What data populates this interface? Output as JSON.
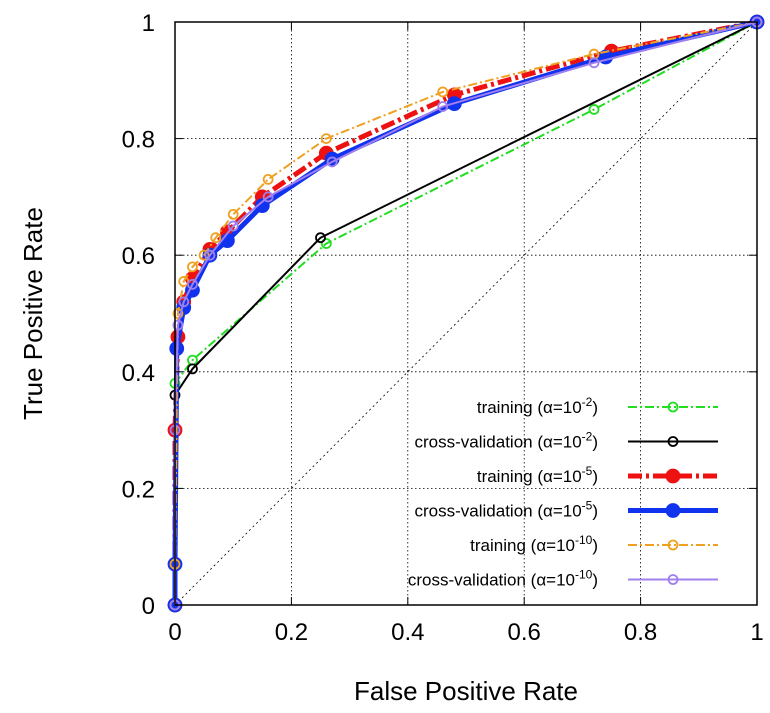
{
  "chart_data": {
    "type": "line",
    "xlabel": "False Positive Rate",
    "ylabel": "True Positive Rate",
    "xlim": [
      0,
      1
    ],
    "ylim": [
      0,
      1
    ],
    "x_ticks": [
      "0",
      "0.2",
      "0.4",
      "0.6",
      "0.8",
      "1"
    ],
    "y_ticks": [
      "0",
      "0.2",
      "0.4",
      "0.6",
      "0.8",
      "1"
    ],
    "grid": true,
    "legend_position": "bottom-right",
    "diagonal_reference": true,
    "series": [
      {
        "name": "training (α=10⁻²)",
        "name_base": "training (α=10",
        "name_exp": "-2",
        "color": "#22dd22",
        "dash": "dash-dot",
        "weight": "thin",
        "marker": "open-circle",
        "points": [
          [
            0,
            0
          ],
          [
            0,
            0.38
          ],
          [
            0.03,
            0.42
          ],
          [
            0.26,
            0.62
          ],
          [
            0.72,
            0.85
          ],
          [
            1,
            1
          ]
        ]
      },
      {
        "name": "cross-validation (α=10⁻²)",
        "name_base": "cross-validation (α=10",
        "name_exp": "-2",
        "color": "#000000",
        "dash": "solid",
        "weight": "thin",
        "marker": "open-circle",
        "points": [
          [
            0,
            0
          ],
          [
            0,
            0.36
          ],
          [
            0.03,
            0.405
          ],
          [
            0.25,
            0.63
          ],
          [
            1,
            1
          ]
        ]
      },
      {
        "name": "training (α=10⁻⁵)",
        "name_base": "training (α=10",
        "name_exp": "-5",
        "color": "#ee1111",
        "dash": "dash-dot",
        "weight": "thick",
        "marker": "filled-circle",
        "points": [
          [
            0,
            0
          ],
          [
            0,
            0.3
          ],
          [
            0.005,
            0.46
          ],
          [
            0.015,
            0.52
          ],
          [
            0.03,
            0.56
          ],
          [
            0.06,
            0.61
          ],
          [
            0.09,
            0.64
          ],
          [
            0.15,
            0.7
          ],
          [
            0.26,
            0.775
          ],
          [
            0.48,
            0.875
          ],
          [
            0.75,
            0.95
          ],
          [
            1,
            1
          ]
        ]
      },
      {
        "name": "cross-validation (α=10⁻⁵)",
        "name_base": "cross-validation (α=10",
        "name_exp": "-5",
        "color": "#1133ee",
        "dash": "solid",
        "weight": "thick",
        "marker": "filled-circle",
        "points": [
          [
            0,
            0
          ],
          [
            0,
            0.07
          ],
          [
            0.003,
            0.44
          ],
          [
            0.015,
            0.51
          ],
          [
            0.03,
            0.54
          ],
          [
            0.06,
            0.6
          ],
          [
            0.09,
            0.625
          ],
          [
            0.15,
            0.685
          ],
          [
            0.27,
            0.765
          ],
          [
            0.48,
            0.86
          ],
          [
            0.74,
            0.94
          ],
          [
            1,
            1
          ]
        ]
      },
      {
        "name": "training (α=10⁻¹⁰)",
        "name_base": "training (α=10",
        "name_exp": "-10",
        "color": "#f0a020",
        "dash": "dash-dot",
        "weight": "thin",
        "marker": "open-circle",
        "points": [
          [
            0,
            0
          ],
          [
            0,
            0.07
          ],
          [
            0.005,
            0.5
          ],
          [
            0.015,
            0.555
          ],
          [
            0.03,
            0.58
          ],
          [
            0.05,
            0.6
          ],
          [
            0.07,
            0.63
          ],
          [
            0.1,
            0.67
          ],
          [
            0.16,
            0.73
          ],
          [
            0.26,
            0.8
          ],
          [
            0.46,
            0.88
          ],
          [
            0.72,
            0.945
          ],
          [
            1,
            1
          ]
        ]
      },
      {
        "name": "cross-validation (α=10⁻¹⁰)",
        "name_base": "cross-validation (α=10",
        "name_exp": "-10",
        "color": "#a080ee",
        "dash": "solid",
        "weight": "thin",
        "marker": "open-circle",
        "points": [
          [
            0,
            0
          ],
          [
            0,
            0.3
          ],
          [
            0.005,
            0.48
          ],
          [
            0.015,
            0.52
          ],
          [
            0.03,
            0.55
          ],
          [
            0.06,
            0.6
          ],
          [
            0.1,
            0.65
          ],
          [
            0.16,
            0.7
          ],
          [
            0.27,
            0.76
          ],
          [
            0.46,
            0.855
          ],
          [
            0.72,
            0.93
          ],
          [
            1,
            1
          ]
        ]
      }
    ]
  }
}
